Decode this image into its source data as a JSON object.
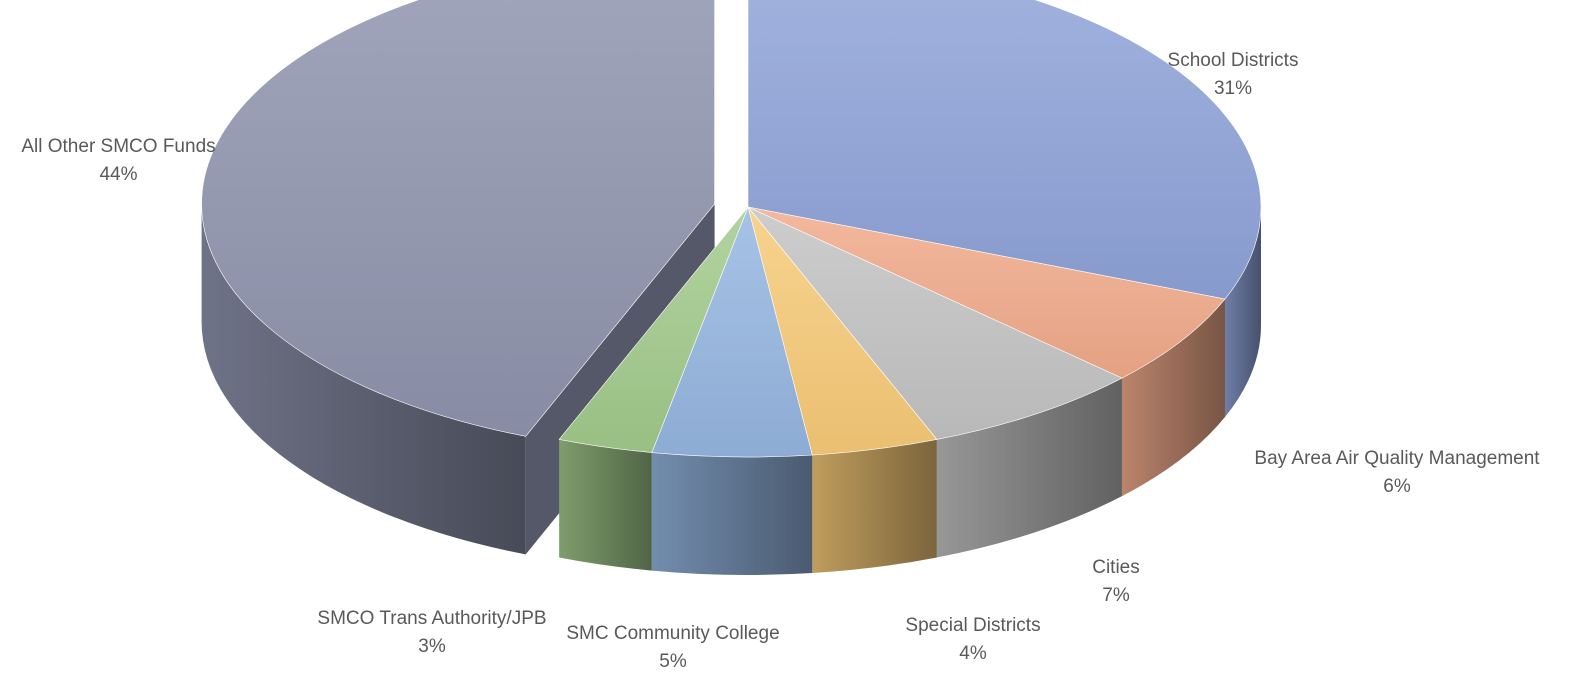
{
  "chart_data": {
    "type": "pie",
    "title": "",
    "slices": [
      {
        "label": "School Districts",
        "value": 31,
        "value_label": "31%",
        "color": "#8ea2d8",
        "exploded": false
      },
      {
        "label": "Bay Area Air Quality Management",
        "value": 6,
        "value_label": "6%",
        "color": "#f0a989",
        "exploded": false
      },
      {
        "label": "Cities",
        "value": 7,
        "value_label": "7%",
        "color": "#c2c2c2",
        "exploded": false
      },
      {
        "label": "Special Districts",
        "value": 4,
        "value_label": "4%",
        "color": "#f6c977",
        "exploded": false
      },
      {
        "label": "SMC Community College",
        "value": 5,
        "value_label": "5%",
        "color": "#94b5df",
        "exploded": false
      },
      {
        "label": "SMCO Trans Authority/JPB",
        "value": 3,
        "value_label": "3%",
        "color": "#a1c98b",
        "exploded": false
      },
      {
        "label": "All Other SMCO Funds",
        "value": 44,
        "value_label": "44%",
        "color": "#8e93ad",
        "exploded": true
      }
    ],
    "style": "3d-pie",
    "legend": "none",
    "data_labels": "outside"
  }
}
